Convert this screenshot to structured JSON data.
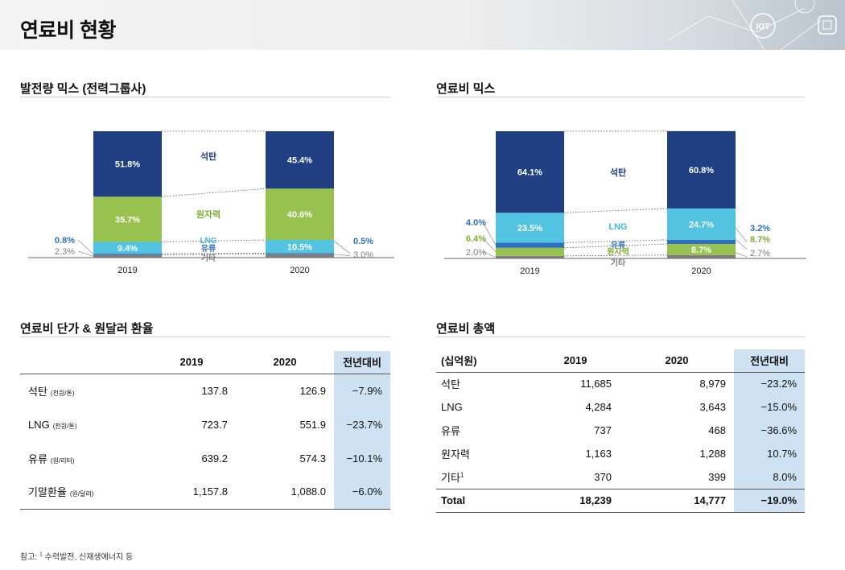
{
  "page": {
    "title": "연료비 현황"
  },
  "header": {
    "iot_label": "IOT"
  },
  "colors": {
    "coal": "#1f3f82",
    "nuclear": "#97c24f",
    "lng": "#52c3e0",
    "oil": "#2f6fbf",
    "other": "#7d7d7d",
    "yoy_bg": "#cfe2f3"
  },
  "chart_data": [
    {
      "type": "bar",
      "title": "발전량 믹스 (전력그룹사)",
      "categories": [
        "2019",
        "2020"
      ],
      "series": [
        {
          "name": "석탄",
          "values": [
            51.8,
            45.4
          ],
          "labels": [
            "51.8%",
            "45.4%"
          ]
        },
        {
          "name": "원자력",
          "values": [
            35.7,
            40.6
          ],
          "labels": [
            "35.7%",
            "40.6%"
          ]
        },
        {
          "name": "LNG",
          "values": [
            9.4,
            10.5
          ],
          "labels": [
            "9.4%",
            "10.5%"
          ]
        },
        {
          "name": "유류",
          "values": [
            0.8,
            0.5
          ],
          "labels": [
            "0.8%",
            "0.5%"
          ]
        },
        {
          "name": "기타",
          "values": [
            2.3,
            3.0
          ],
          "labels": [
            "2.3%",
            "3.0%"
          ]
        }
      ],
      "stacked": true
    },
    {
      "type": "bar",
      "title": "연료비 믹스",
      "categories": [
        "2019",
        "2020"
      ],
      "series": [
        {
          "name": "석탄",
          "values": [
            64.1,
            60.8
          ],
          "labels": [
            "64.1%",
            "60.8%"
          ]
        },
        {
          "name": "LNG",
          "values": [
            23.5,
            24.7
          ],
          "labels": [
            "23.5%",
            "24.7%"
          ]
        },
        {
          "name": "유류",
          "values": [
            4.0,
            3.2
          ],
          "labels": [
            "4.0%",
            "3.2%"
          ]
        },
        {
          "name": "원자력",
          "values": [
            6.4,
            8.7
          ],
          "labels": [
            "6.4%",
            "8.7%"
          ]
        },
        {
          "name": "기타",
          "values": [
            2.0,
            2.7
          ],
          "labels": [
            "2.0%",
            "2.7%"
          ]
        }
      ],
      "stacked": true
    },
    {
      "type": "table",
      "title": "연료비 단가 & 원달러 환율",
      "columns": [
        "",
        "2019",
        "2020",
        "전년대비"
      ],
      "rows": [
        {
          "name": "석탄",
          "unit": "(천원/톤)",
          "v2019": "137.8",
          "v2020": "126.9",
          "yoy": "−7.9%"
        },
        {
          "name": "LNG",
          "unit": "(천원/톤)",
          "v2019": "723.7",
          "v2020": "551.9",
          "yoy": "−23.7%"
        },
        {
          "name": "유류",
          "unit": "(원/리터)",
          "v2019": "639.2",
          "v2020": "574.3",
          "yoy": "−10.1%"
        },
        {
          "name": "기말환율",
          "unit": "(원/달러)",
          "v2019": "1,157.8",
          "v2020": "1,088.0",
          "yoy": "−6.0%"
        }
      ]
    },
    {
      "type": "table",
      "title": "연료비 총액",
      "columns": [
        "(십억원)",
        "2019",
        "2020",
        "전년대비"
      ],
      "rows": [
        {
          "name": "석탄",
          "sup": "",
          "v2019": "11,685",
          "v2020": "8,979",
          "yoy": "−23.2%"
        },
        {
          "name": "LNG",
          "sup": "",
          "v2019": "4,284",
          "v2020": "3,643",
          "yoy": "−15.0%"
        },
        {
          "name": "유류",
          "sup": "",
          "v2019": "737",
          "v2020": "468",
          "yoy": "−36.6%"
        },
        {
          "name": "원자력",
          "sup": "",
          "v2019": "1,163",
          "v2020": "1,288",
          "yoy": "10.7%"
        },
        {
          "name": "기타",
          "sup": "1",
          "v2019": "370",
          "v2020": "399",
          "yoy": "8.0%"
        }
      ],
      "total": {
        "name": "Total",
        "v2019": "18,239",
        "v2020": "14,777",
        "yoy": "−19.0%"
      }
    }
  ],
  "footnote": {
    "prefix": "참고: ",
    "mark": "1",
    "text": " 수력발전, 신재생에너지 등"
  }
}
